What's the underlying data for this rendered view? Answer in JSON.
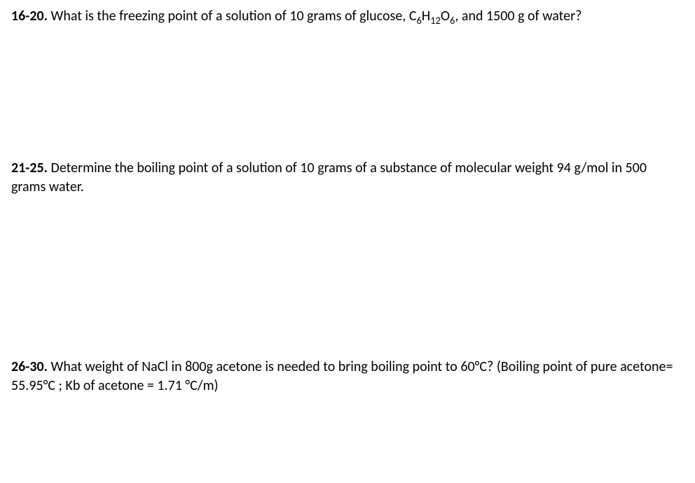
{
  "text_color": "#000000",
  "background_color": "#ffffff",
  "font_family": "Calibri",
  "font_size_pt": 15,
  "problems": [
    {
      "number": "16-20.",
      "pre": " What is the freezing point of a solution of 10 grams of glucose, C",
      "sub1": "6",
      "mid1": "H",
      "sub2": "12",
      "mid2": "O",
      "sub3": "6",
      "post": ", and 1500 g of water?"
    },
    {
      "number": "21-25.",
      "text": " Determine the boiling point of a solution of 10 grams of a substance of molecular weight 94 g/mol in 500 grams water."
    },
    {
      "number": "26-30.",
      "text": " What weight of NaCl in 800g acetone is needed to bring boiling point to 60°C? (Boiling point of pure acetone= 55.95°C ; Kb of acetone = 1.71 °C/m)"
    }
  ]
}
